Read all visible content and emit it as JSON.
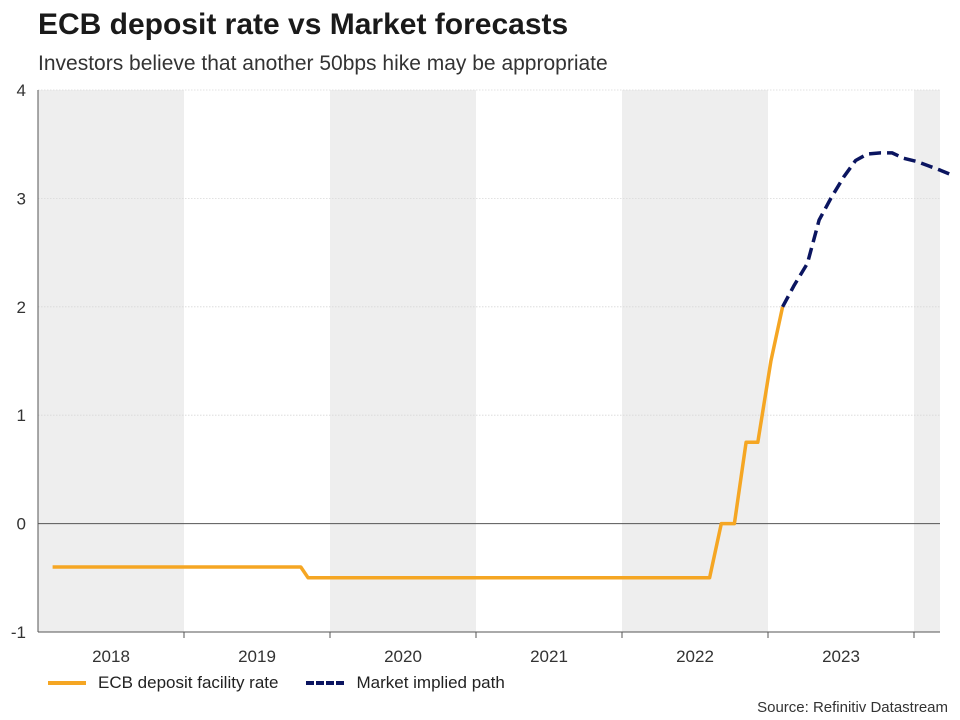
{
  "title": "ECB deposit rate vs Market forecasts",
  "subtitle": "Investors believe that another 50bps hike may be appropriate",
  "source": "Source: Refinitiv Datastream",
  "colors": {
    "ecb_rate": "#f5a623",
    "market_path": "#0b1560",
    "band": "#eeeeee",
    "zero_line": "#555555"
  },
  "chart_data": {
    "type": "line",
    "title": "ECB deposit rate vs Market forecasts",
    "subtitle": "Investors believe that another 50bps hike may be appropriate",
    "xlabel": "",
    "ylabel": "",
    "xlim": [
      2017.9,
      2024.2
    ],
    "ylim": [
      -1,
      4
    ],
    "yticks": [
      -1,
      0,
      1,
      2,
      3,
      4
    ],
    "year_labels": [
      "2018",
      "2019",
      "2020",
      "2021",
      "2022",
      "2023"
    ],
    "shaded_years": [
      2018,
      2020,
      2022,
      2024
    ],
    "grid": true,
    "legend_placement": "bottom-left",
    "series": [
      {
        "name": "ECB deposit facility rate",
        "style": "solid",
        "color": "#f5a623",
        "points": [
          [
            2018.0,
            -0.4
          ],
          [
            2019.7,
            -0.4
          ],
          [
            2019.75,
            -0.5
          ],
          [
            2022.5,
            -0.5
          ],
          [
            2022.58,
            0.0
          ],
          [
            2022.67,
            0.0
          ],
          [
            2022.75,
            0.75
          ],
          [
            2022.83,
            0.75
          ],
          [
            2022.92,
            1.5
          ],
          [
            2023.0,
            2.0
          ]
        ]
      },
      {
        "name": "Market implied path",
        "style": "dashed",
        "color": "#0b1560",
        "points": [
          [
            2023.0,
            2.0
          ],
          [
            2023.08,
            2.2
          ],
          [
            2023.17,
            2.4
          ],
          [
            2023.25,
            2.8
          ],
          [
            2023.33,
            3.0
          ],
          [
            2023.42,
            3.2
          ],
          [
            2023.5,
            3.35
          ],
          [
            2023.58,
            3.41
          ],
          [
            2023.67,
            3.42
          ],
          [
            2023.75,
            3.42
          ],
          [
            2023.83,
            3.37
          ],
          [
            2023.92,
            3.34
          ],
          [
            2024.0,
            3.3
          ],
          [
            2024.08,
            3.26
          ],
          [
            2024.17,
            3.21
          ]
        ]
      }
    ]
  }
}
